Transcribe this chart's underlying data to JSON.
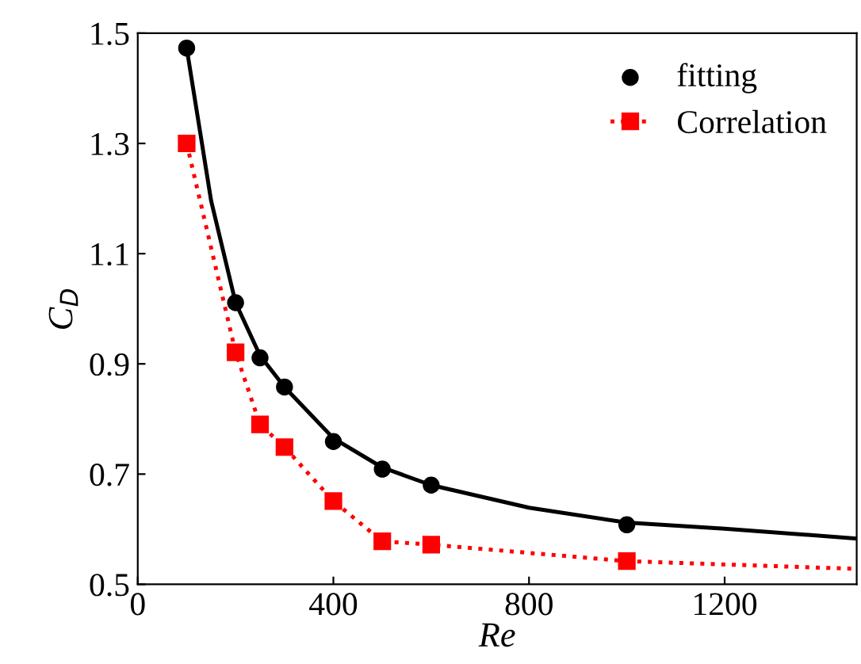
{
  "chart_data": {
    "type": "line",
    "xlabel": "Re",
    "ylabel": "C$_{D}$",
    "xlim": [
      0,
      1470
    ],
    "ylim": [
      0.5,
      1.5
    ],
    "xticks": [
      0,
      400,
      800,
      1200
    ],
    "yticks": [
      0.5,
      0.7,
      0.9,
      1.1,
      1.3,
      1.5
    ],
    "grid": false,
    "legend": "top right",
    "series": [
      {
        "color": "#000000",
        "line_style": "solid",
        "marker": "none",
        "x": [
          100,
          150,
          200,
          250,
          300,
          400,
          500,
          600,
          800,
          1000,
          1200,
          1470
        ],
        "values": [
          1.473,
          1.196,
          1.011,
          0.915,
          0.858,
          0.765,
          0.712,
          0.68,
          0.639,
          0.612,
          0.601,
          0.583
        ]
      },
      {
        "type": "scatter",
        "name": "fitting",
        "color": "#000000",
        "marker": "circle",
        "x": [
          100,
          200,
          250,
          300,
          400,
          500,
          600,
          1000
        ],
        "values": [
          1.473,
          1.011,
          0.911,
          0.858,
          0.759,
          0.709,
          0.68,
          0.608
        ]
      },
      {
        "type": "line",
        "name": "Correlation",
        "color": "#ff0000",
        "line_style": "dotted",
        "marker": "square",
        "x": [
          100,
          200,
          250,
          300,
          400,
          500,
          600,
          1000
        ],
        "values": [
          1.3,
          0.921,
          0.79,
          0.749,
          0.651,
          0.578,
          0.572,
          0.542
        ]
      },
      {
        "type": "line",
        "color": "#ff0000",
        "line_style": "dotted",
        "marker": "none",
        "x": [
          1000,
          1470
        ],
        "values": [
          0.542,
          0.528
        ]
      }
    ]
  }
}
